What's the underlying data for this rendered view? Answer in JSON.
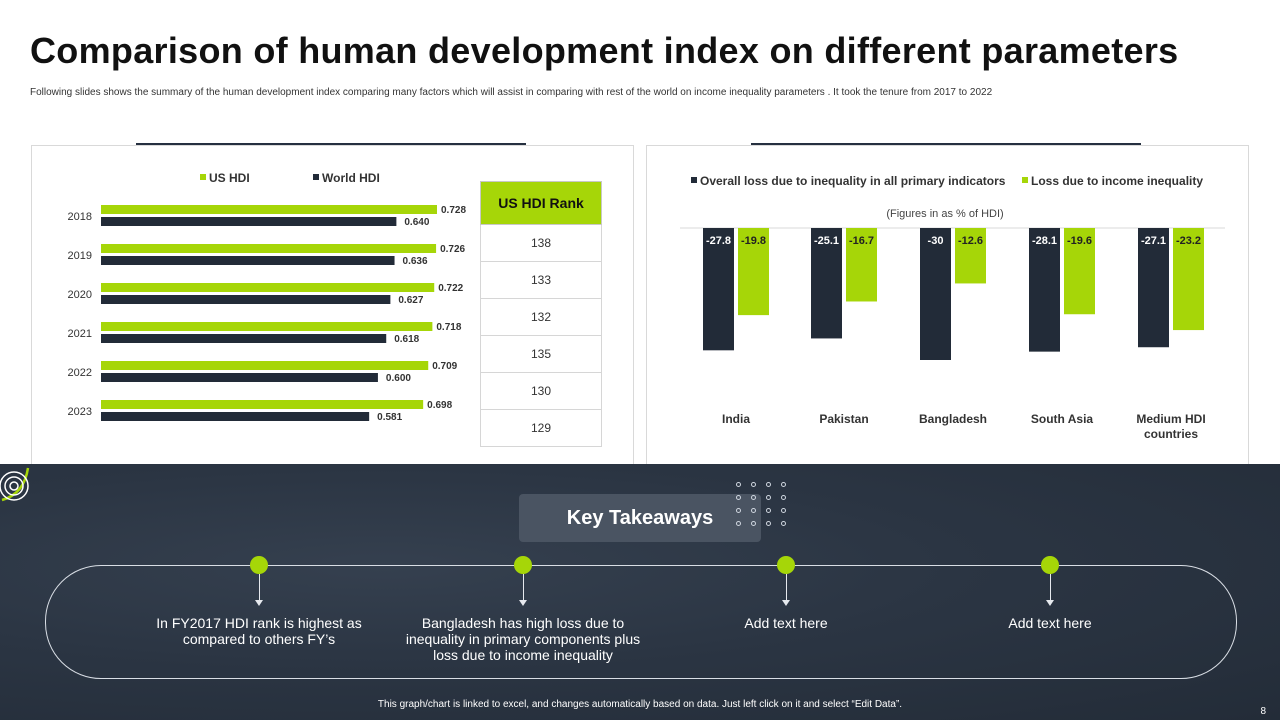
{
  "slide": {
    "title": "Comparison of human development index on different parameters",
    "subtitle": "Following slides shows the summary of the human development index comparing many factors which will assist in comparing with rest of the world on income inequality parameters . It took the tenure from 2017 to 2022",
    "footnote": "This graph/chart is linked to excel, and changes automatically based on data. Just left click on it and select “Edit Data”.",
    "page_number": "8"
  },
  "colors": {
    "green": "#a6d608",
    "navy": "#222b38"
  },
  "chart_data": [
    {
      "type": "bar",
      "orientation": "horizontal",
      "categories": [
        "2018",
        "2019",
        "2020",
        "2021",
        "2022",
        "2023"
      ],
      "series": [
        {
          "name": "US HDI",
          "color": "#a6d608",
          "values": [
            0.728,
            0.726,
            0.722,
            0.718,
            0.709,
            0.698
          ],
          "labels": [
            "0.728",
            "0.726",
            "0.722",
            "0.718",
            "0.709",
            "0.698"
          ]
        },
        {
          "name": "World HDI",
          "color": "#222b38",
          "values": [
            0.64,
            0.636,
            0.627,
            0.618,
            0.6,
            0.581
          ],
          "labels": [
            "0.640",
            "0.636",
            "0.627",
            "0.618",
            "0.600",
            "0.581"
          ]
        }
      ],
      "xlim": [
        0,
        0.728
      ],
      "legend": "top"
    },
    {
      "type": "table",
      "header": "US HDI Rank",
      "values": [
        "138",
        "133",
        "132",
        "135",
        "130",
        "129"
      ]
    },
    {
      "type": "bar",
      "orientation": "vertical",
      "subtitle": "(Figures in as % of HDI)",
      "categories": [
        "India",
        "Pakistan",
        "Bangladesh",
        "South Asia",
        "Medium HDI countries"
      ],
      "series": [
        {
          "name": "Overall loss due to inequality in all primary indicators",
          "color": "#222b38",
          "values": [
            -27.8,
            -25.1,
            -30,
            -28.1,
            -27.1
          ],
          "labels": [
            "-27.8",
            "-25.1",
            "-30",
            "-28.1",
            "-27.1"
          ]
        },
        {
          "name": "Loss due to income inequality",
          "color": "#a6d608",
          "values": [
            -19.8,
            -16.7,
            -12.6,
            -19.6,
            -23.2
          ],
          "labels": [
            "-19.8",
            "-16.7",
            "-12.6",
            "-19.6",
            "-23.2"
          ]
        }
      ],
      "ylim": [
        -30,
        0
      ],
      "legend": "top"
    }
  ],
  "takeaways": {
    "heading": "Key Takeaways",
    "items": [
      "In FY2017 HDI rank is highest as compared to others FY’s",
      "Bangladesh has high loss due to inequality in primary components plus loss due to income inequality",
      "Add text here",
      "Add text here"
    ]
  }
}
